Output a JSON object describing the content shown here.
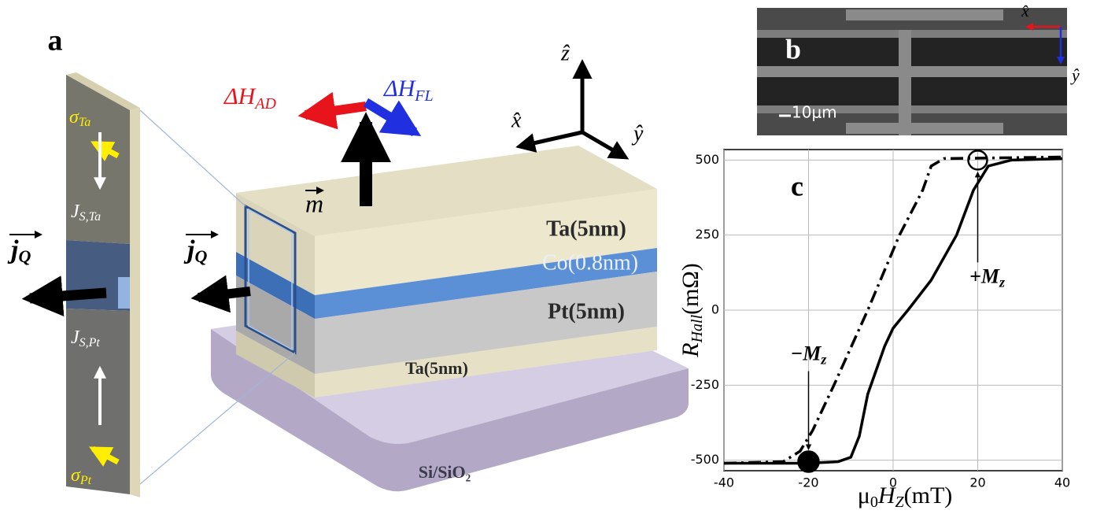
{
  "labels": [
    "a",
    "b",
    "c"
  ],
  "diagram": {
    "layers": [
      "Ta(5nm)",
      "Co(0.8nm)",
      "Pt(5nm)",
      "Ta(5nm)",
      "Si/SiO₂"
    ],
    "axes": {
      "x": "x̂",
      "y": "ŷ",
      "z": "ẑ"
    },
    "vectors": {
      "h_ad": {
        "text": "ΔH",
        "sub": "AD"
      },
      "h_fl": {
        "text": "ΔH",
        "sub": "FL"
      },
      "m": {
        "text": "m"
      },
      "jq_strip": {
        "text": "j",
        "sub": "Q"
      },
      "jq_block": {
        "text": "j",
        "sub": "Q"
      },
      "sigma_ta": {
        "text": "σ",
        "sub": "Ta"
      },
      "js_ta": {
        "text": "J",
        "sub": "S,Ta"
      },
      "js_pt": {
        "text": "J",
        "sub": "S,Pt"
      },
      "sigma_pt": {
        "text": "σ",
        "sub": "Pt"
      }
    }
  },
  "sem": {
    "x": "x̂",
    "y": "ŷ",
    "scale": "10μm"
  },
  "chart_data": {
    "type": "line",
    "xlabel": {
      "pre": "μ",
      "pre_sub": "0",
      "main": "H",
      "sub": "Z",
      "unit": "(mT)"
    },
    "ylabel": {
      "main": "R",
      "sub": "Hall",
      "unit": "(mΩ)"
    },
    "xlim": [
      -40,
      40
    ],
    "xticks": [
      -40,
      -20,
      0,
      20,
      40
    ],
    "ylim": [
      -535,
      535
    ],
    "yticks": [
      -500,
      -250,
      0,
      250,
      500
    ],
    "grid": true,
    "series": [
      {
        "color": "#000000",
        "style": "solid",
        "x": [
          -40,
          -20,
          -13,
          -10,
          -8,
          -6,
          -4,
          -2,
          0,
          3.5,
          9,
          15,
          19,
          22.5,
          28,
          40
        ],
        "values": [
          -510,
          -510,
          -505,
          -490,
          -420,
          -280,
          -200,
          -120,
          -60,
          0,
          100,
          250,
          400,
          480,
          500,
          505
        ]
      },
      {
        "color": "#000000",
        "style": "dashdot",
        "x": [
          -40,
          -26,
          -22,
          -19,
          -14,
          -6,
          1.5,
          7,
          9,
          12,
          40
        ],
        "values": [
          -510,
          -505,
          -470,
          -400,
          -250,
          0,
          250,
          400,
          480,
          505,
          510
        ]
      }
    ],
    "markers": [
      {
        "x": 20,
        "y": 500,
        "filled": false
      },
      {
        "x": -20,
        "y": -505,
        "filled": true
      }
    ],
    "annotations": [
      {
        "text": "+M",
        "sub": "z"
      },
      {
        "text": "−M",
        "sub": "z"
      }
    ]
  }
}
